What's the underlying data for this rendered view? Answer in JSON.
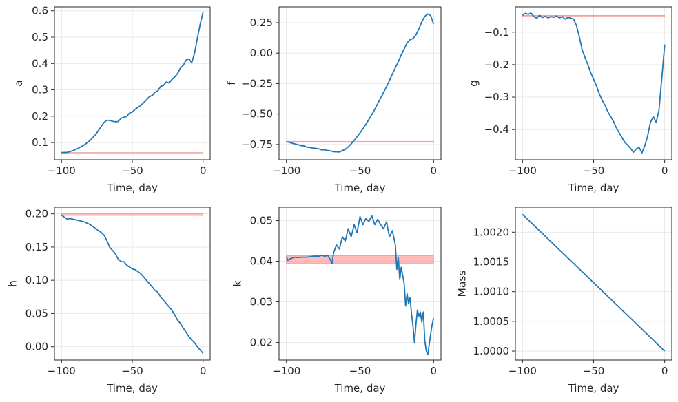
{
  "chart_data": [
    {
      "type": "line",
      "xlabel": "Time, day",
      "ylabel": "a",
      "xlim": [
        -105,
        5
      ],
      "ylim": [
        0.035,
        0.615
      ],
      "xticks": [
        -100,
        -50,
        0
      ],
      "xtick_labels": [
        "−100",
        "−50",
        "0"
      ],
      "yticks": [
        0.1,
        0.2,
        0.3,
        0.4,
        0.5,
        0.6
      ],
      "ytick_labels": [
        "0.1",
        "0.2",
        "0.3",
        "0.4",
        "0.5",
        "0.6"
      ],
      "grid": true,
      "band": {
        "y_low": 0.058,
        "y_high": 0.062,
        "x_start": -100,
        "x_end": 0,
        "color": "#ff9896"
      },
      "series": [
        {
          "color": "#1f77b4",
          "x": [
            -100,
            -96,
            -92,
            -88,
            -84,
            -80,
            -76,
            -72,
            -70,
            -68,
            -66,
            -64,
            -62,
            -60,
            -58,
            -56,
            -54,
            -52,
            -50,
            -48,
            -46,
            -44,
            -42,
            -40,
            -38,
            -36,
            -34,
            -32,
            -30,
            -28,
            -26,
            -24,
            -22,
            -20,
            -18,
            -16,
            -14,
            -12,
            -10,
            -8,
            -6,
            -4,
            -2,
            0
          ],
          "y": [
            0.062,
            0.063,
            0.069,
            0.079,
            0.091,
            0.107,
            0.13,
            0.161,
            0.176,
            0.185,
            0.184,
            0.181,
            0.179,
            0.18,
            0.192,
            0.196,
            0.199,
            0.212,
            0.216,
            0.226,
            0.234,
            0.241,
            0.251,
            0.262,
            0.274,
            0.279,
            0.291,
            0.296,
            0.313,
            0.317,
            0.33,
            0.326,
            0.339,
            0.349,
            0.362,
            0.383,
            0.393,
            0.413,
            0.418,
            0.403,
            0.44,
            0.497,
            0.55,
            0.595
          ]
        }
      ]
    },
    {
      "type": "line",
      "xlabel": "Time, day",
      "ylabel": "f",
      "xlim": [
        -105,
        5
      ],
      "ylim": [
        -0.875,
        0.38
      ],
      "xticks": [
        -100,
        -50,
        0
      ],
      "xtick_labels": [
        "−100",
        "−50",
        "0"
      ],
      "yticks": [
        -0.75,
        -0.5,
        -0.25,
        0.0,
        0.25
      ],
      "ytick_labels": [
        "−0.75",
        "−0.50",
        "−0.25",
        "0.00",
        "0.25"
      ],
      "grid": true,
      "band": {
        "y_low": -0.731,
        "y_high": -0.725,
        "x_start": -100,
        "x_end": 0,
        "color": "#ff9896"
      },
      "series": [
        {
          "color": "#1f77b4",
          "x": [
            -100,
            -96,
            -92,
            -90,
            -88,
            -86,
            -84,
            -82,
            -80,
            -78,
            -76,
            -74,
            -72,
            -70,
            -68,
            -66,
            -64,
            -62,
            -60,
            -58,
            -56,
            -54,
            -52,
            -50,
            -48,
            -46,
            -44,
            -42,
            -40,
            -38,
            -36,
            -34,
            -32,
            -30,
            -28,
            -26,
            -24,
            -22,
            -20,
            -18,
            -16,
            -14,
            -12,
            -10,
            -8,
            -6,
            -4,
            -2,
            0
          ],
          "y": [
            -0.725,
            -0.74,
            -0.752,
            -0.76,
            -0.762,
            -0.772,
            -0.775,
            -0.78,
            -0.782,
            -0.786,
            -0.795,
            -0.793,
            -0.8,
            -0.802,
            -0.81,
            -0.81,
            -0.812,
            -0.8,
            -0.79,
            -0.77,
            -0.745,
            -0.716,
            -0.687,
            -0.655,
            -0.62,
            -0.585,
            -0.545,
            -0.505,
            -0.462,
            -0.415,
            -0.37,
            -0.322,
            -0.275,
            -0.225,
            -0.172,
            -0.12,
            -0.07,
            -0.015,
            0.035,
            0.085,
            0.11,
            0.12,
            0.15,
            0.2,
            0.258,
            0.302,
            0.322,
            0.31,
            0.24
          ]
        }
      ]
    },
    {
      "type": "line",
      "xlabel": "Time, day",
      "ylabel": "g",
      "xlim": [
        -105,
        5
      ],
      "ylim": [
        -0.493,
        -0.022
      ],
      "xticks": [
        -100,
        -50,
        0
      ],
      "xtick_labels": [
        "−100",
        "−50",
        "0"
      ],
      "yticks": [
        -0.1,
        -0.2,
        -0.3,
        -0.4
      ],
      "ytick_labels": [
        "−0.1",
        "−0.2",
        "−0.3",
        "−0.4"
      ],
      "grid": true,
      "band": {
        "y_low": -0.052,
        "y_high": -0.048,
        "x_start": -100,
        "x_end": 0,
        "color": "#ff9896"
      },
      "series": [
        {
          "color": "#1f77b4",
          "x": [
            -100,
            -98,
            -96,
            -94,
            -92,
            -90,
            -88,
            -86,
            -84,
            -82,
            -80,
            -78,
            -76,
            -74,
            -72,
            -70,
            -68,
            -66,
            -64,
            -62,
            -60,
            -58,
            -56,
            -54,
            -52,
            -50,
            -48,
            -46,
            -44,
            -42,
            -40,
            -38,
            -36,
            -34,
            -32,
            -30,
            -28,
            -26,
            -24,
            -22,
            -20,
            -18,
            -16,
            -14,
            -12,
            -10,
            -8,
            -6,
            -4,
            -2,
            0
          ],
          "y": [
            -0.048,
            -0.042,
            -0.045,
            -0.041,
            -0.052,
            -0.057,
            -0.048,
            -0.055,
            -0.051,
            -0.056,
            -0.052,
            -0.054,
            -0.05,
            -0.056,
            -0.052,
            -0.06,
            -0.054,
            -0.057,
            -0.06,
            -0.08,
            -0.115,
            -0.155,
            -0.178,
            -0.2,
            -0.225,
            -0.245,
            -0.265,
            -0.29,
            -0.31,
            -0.325,
            -0.345,
            -0.36,
            -0.375,
            -0.395,
            -0.41,
            -0.425,
            -0.44,
            -0.448,
            -0.458,
            -0.47,
            -0.46,
            -0.455,
            -0.472,
            -0.45,
            -0.42,
            -0.378,
            -0.36,
            -0.378,
            -0.34,
            -0.24,
            -0.138
          ]
        }
      ]
    },
    {
      "type": "line",
      "xlabel": "Time, day",
      "ylabel": "h",
      "xlim": [
        -105,
        5
      ],
      "ylim": [
        -0.02,
        0.21
      ],
      "xticks": [
        -100,
        -50,
        0
      ],
      "xtick_labels": [
        "−100",
        "−50",
        "0"
      ],
      "yticks": [
        0.0,
        0.05,
        0.1,
        0.15,
        0.2
      ],
      "ytick_labels": [
        "0.00",
        "0.05",
        "0.10",
        "0.15",
        "0.20"
      ],
      "grid": true,
      "band": {
        "y_low": 0.1975,
        "y_high": 0.2005,
        "x_start": -100,
        "x_end": 0,
        "color": "#ff9896"
      },
      "series": [
        {
          "color": "#1f77b4",
          "x": [
            -100,
            -98,
            -96,
            -94,
            -92,
            -90,
            -88,
            -86,
            -84,
            -82,
            -80,
            -78,
            -76,
            -74,
            -72,
            -70,
            -68,
            -66,
            -64,
            -62,
            -60,
            -58,
            -56,
            -54,
            -52,
            -50,
            -48,
            -46,
            -44,
            -42,
            -40,
            -38,
            -36,
            -34,
            -32,
            -30,
            -28,
            -26,
            -24,
            -22,
            -20,
            -18,
            -16,
            -14,
            -12,
            -10,
            -8,
            -6,
            -4,
            -2,
            0
          ],
          "y": [
            0.198,
            0.195,
            0.192,
            0.193,
            0.192,
            0.191,
            0.19,
            0.189,
            0.188,
            0.186,
            0.184,
            0.181,
            0.178,
            0.175,
            0.172,
            0.168,
            0.16,
            0.15,
            0.145,
            0.14,
            0.132,
            0.128,
            0.128,
            0.123,
            0.12,
            0.117,
            0.116,
            0.113,
            0.11,
            0.105,
            0.1,
            0.095,
            0.09,
            0.085,
            0.082,
            0.075,
            0.07,
            0.065,
            0.06,
            0.055,
            0.048,
            0.04,
            0.035,
            0.028,
            0.022,
            0.015,
            0.01,
            0.006,
            0.0,
            -0.005,
            -0.01
          ]
        }
      ]
    },
    {
      "type": "line",
      "xlabel": "Time, day",
      "ylabel": "k",
      "xlim": [
        -105,
        5
      ],
      "ylim": [
        0.0157,
        0.0533
      ],
      "xticks": [
        -100,
        -50,
        0
      ],
      "xtick_labels": [
        "−100",
        "−50",
        "0"
      ],
      "yticks": [
        0.02,
        0.03,
        0.04,
        0.05
      ],
      "ytick_labels": [
        "0.02",
        "0.03",
        "0.04",
        "0.05"
      ],
      "grid": true,
      "band": {
        "y_low": 0.0395,
        "y_high": 0.0414,
        "x_start": -100,
        "x_end": 0,
        "color": "#ff9896"
      },
      "series": [
        {
          "color": "#1f77b4",
          "x": [
            -100,
            -99,
            -98,
            -96,
            -94,
            -92,
            -90,
            -88,
            -86,
            -84,
            -82,
            -80,
            -78,
            -76,
            -74,
            -72,
            -70,
            -69,
            -68,
            -66,
            -64,
            -62,
            -60,
            -58,
            -56,
            -54,
            -52,
            -50,
            -48,
            -46,
            -44,
            -42,
            -40,
            -38,
            -36,
            -34,
            -32,
            -30,
            -28,
            -26,
            -25,
            -24,
            -23,
            -22,
            -21,
            -20,
            -19,
            -18,
            -17,
            -16,
            -15,
            -14,
            -13,
            -12,
            -11,
            -10,
            -9,
            -8,
            -7,
            -6,
            -5,
            -4,
            -3,
            -2,
            -1,
            0
          ],
          "y": [
            0.0412,
            0.0402,
            0.0405,
            0.0408,
            0.041,
            0.0409,
            0.041,
            0.041,
            0.041,
            0.0411,
            0.0412,
            0.0413,
            0.0412,
            0.0415,
            0.0412,
            0.0415,
            0.0403,
            0.0395,
            0.042,
            0.044,
            0.043,
            0.046,
            0.045,
            0.048,
            0.046,
            0.049,
            0.047,
            0.051,
            0.049,
            0.0505,
            0.0498,
            0.0512,
            0.049,
            0.0503,
            0.049,
            0.048,
            0.0497,
            0.046,
            0.0475,
            0.044,
            0.038,
            0.041,
            0.0355,
            0.0385,
            0.0365,
            0.0345,
            0.029,
            0.032,
            0.0295,
            0.031,
            0.027,
            0.024,
            0.02,
            0.0245,
            0.028,
            0.0265,
            0.0275,
            0.025,
            0.0275,
            0.0205,
            0.018,
            0.017,
            0.0195,
            0.022,
            0.0245,
            0.026
          ]
        }
      ]
    },
    {
      "type": "line",
      "xlabel": "Time, day",
      "ylabel": "Mass",
      "xlim": [
        -105,
        5
      ],
      "ylim": [
        0.99985,
        1.00242
      ],
      "xticks": [
        -100,
        -50,
        0
      ],
      "xtick_labels": [
        "−100",
        "−50",
        "0"
      ],
      "yticks": [
        1.0,
        1.0005,
        1.001,
        1.0015,
        1.002
      ],
      "ytick_labels": [
        "1.0000",
        "1.0005",
        "1.0010",
        "1.0015",
        "1.0020"
      ],
      "grid": true,
      "series": [
        {
          "color": "#1f77b4",
          "x": [
            -100,
            0
          ],
          "y": [
            1.0023,
            1.0
          ]
        }
      ]
    }
  ]
}
